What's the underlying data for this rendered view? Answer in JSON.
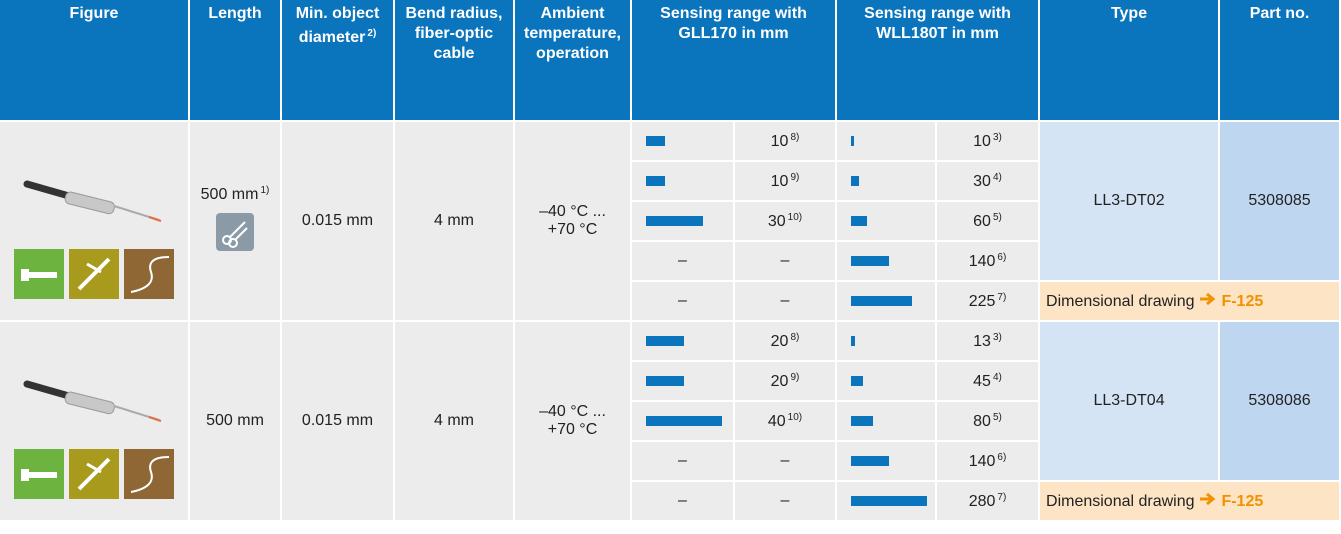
{
  "header": [
    {
      "text": "Figure"
    },
    {
      "text": "Length"
    },
    {
      "text": "Min. object diameter",
      "note": "2)"
    },
    {
      "text": "Bend radius, fiber-optic cable"
    },
    {
      "text": "Ambient temperature, operation"
    },
    {
      "text": "Sensing range with GLL170 in mm"
    },
    {
      "text": "Sensing range with WLL180T in mm"
    },
    {
      "text": "Type"
    },
    {
      "text": "Part no."
    }
  ],
  "rows": [
    {
      "length": "500 mm",
      "length_note": "1)",
      "min_diameter": "0.015 mm",
      "bend_radius": "4 mm",
      "ambient_temperature": "–40 °C ...\n+70 °C",
      "gll170": [
        {
          "value": 10,
          "note": "8)"
        },
        {
          "value": 10,
          "note": "9)"
        },
        {
          "value": 30,
          "note": "10)"
        },
        {
          "placeholder": "–"
        },
        {
          "placeholder": "–"
        }
      ],
      "wll180t": [
        {
          "value": 10,
          "note": "3)"
        },
        {
          "value": 30,
          "note": "4)"
        },
        {
          "value": 60,
          "note": "5)"
        },
        {
          "value": 140,
          "note": "6)"
        },
        {
          "value": 225,
          "note": "7)"
        }
      ],
      "type": "LL3-DT02",
      "part_no": "5308085",
      "drawing": {
        "text": "Dimensional drawing",
        "link": "F-125"
      }
    },
    {
      "length": "500 mm",
      "min_diameter": "0.015 mm",
      "bend_radius": "4 mm",
      "ambient_temperature": "–40 °C ...\n+70 °C",
      "gll170": [
        {
          "value": 20,
          "note": "8)"
        },
        {
          "value": 20,
          "note": "9)"
        },
        {
          "value": 40,
          "note": "10)"
        },
        {
          "placeholder": "–"
        },
        {
          "placeholder": "–"
        }
      ],
      "wll180t": [
        {
          "value": 13,
          "note": "3)"
        },
        {
          "value": 45,
          "note": "4)"
        },
        {
          "value": 80,
          "note": "5)"
        },
        {
          "value": 140,
          "note": "6)"
        },
        {
          "value": 280,
          "note": "7)"
        }
      ],
      "type": "LL3-DT04",
      "part_no": "5308086",
      "drawing": {
        "text": "Dimensional drawing",
        "link": "F-125"
      }
    }
  ]
}
